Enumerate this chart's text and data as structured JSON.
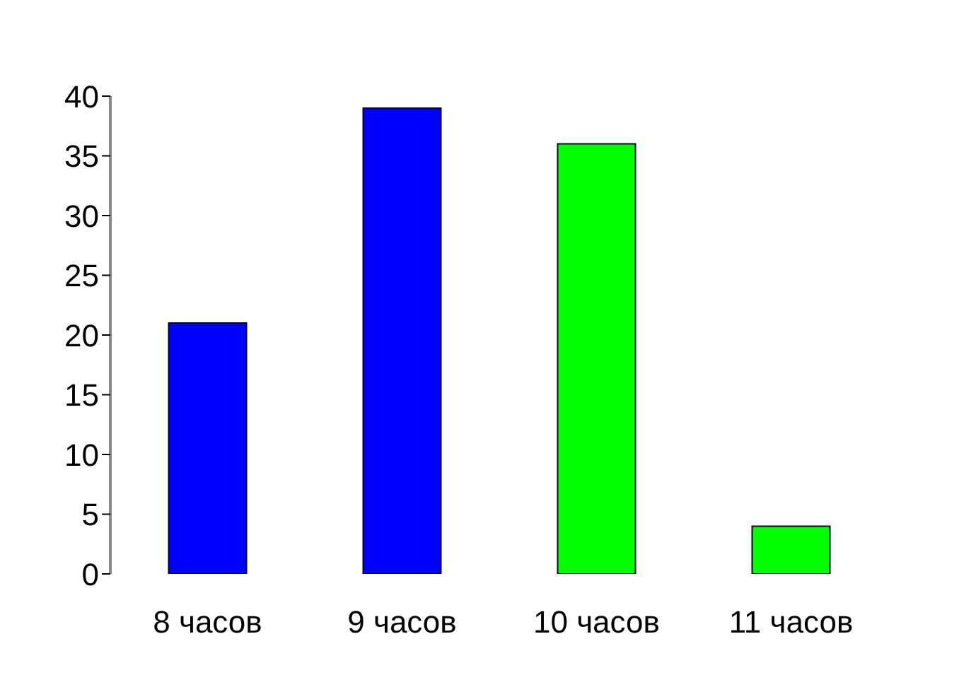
{
  "chart_data": {
    "type": "bar",
    "categories": [
      "8 часов",
      "9 часов",
      "10 часов",
      "11 часов"
    ],
    "values": [
      21,
      39,
      36,
      4
    ],
    "colors": [
      "#0000ff",
      "#0000ff",
      "#00ff00",
      "#00ff00"
    ],
    "ylim": [
      0,
      40
    ],
    "yticks": [
      0,
      5,
      10,
      15,
      20,
      25,
      30,
      35,
      40
    ],
    "grid": false
  }
}
